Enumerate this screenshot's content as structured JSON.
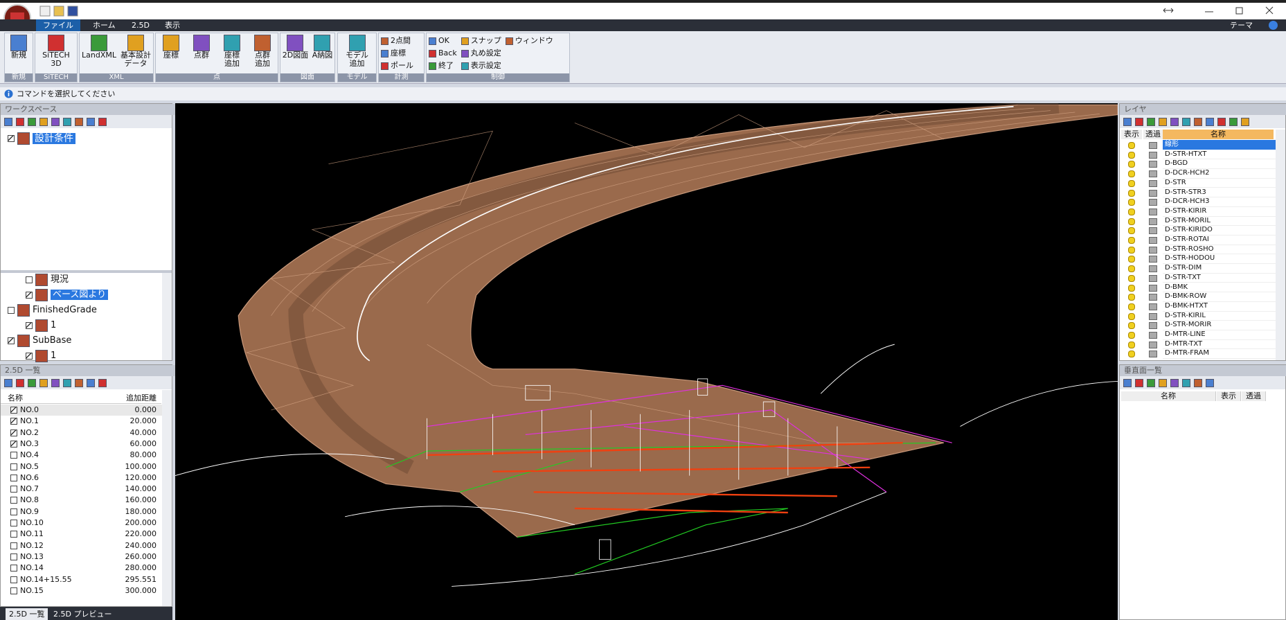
{
  "tabs": [
    "ファイル",
    "ホーム",
    "2.5D",
    "表示"
  ],
  "theme_menu": "テーマ",
  "ribbon": [
    {
      "label": "新規",
      "buttons": [
        "新規"
      ]
    },
    {
      "label": "SiTECH",
      "buttons": [
        "SiTECH\n3D"
      ]
    },
    {
      "label": "XML",
      "buttons": [
        "LandXML",
        "基本設計\nデータ"
      ]
    },
    {
      "label": "点",
      "buttons": [
        "座標",
        "点群",
        "座標\n追加",
        "点群\n追加"
      ]
    },
    {
      "label": "図面",
      "buttons": [
        "2D図面",
        "A納図"
      ]
    },
    {
      "label": "モデル",
      "buttons": [
        "モデル\n追加"
      ]
    },
    {
      "label": "計測",
      "buttons": [
        "2点間",
        "座標",
        "ポール"
      ]
    },
    {
      "label": "制御",
      "buttons": [
        "OK",
        "Back",
        "終了",
        "スナップ",
        "丸め設定",
        "表示設定",
        "ウィンドウ"
      ]
    }
  ],
  "status": "コマンドを選択してください",
  "workspace": {
    "title": "ワークスペース",
    "items": [
      {
        "label": "設計条件",
        "checked": true
      },
      {
        "label": "現況",
        "checked": false
      },
      {
        "label": "ベース図より",
        "checked": true
      },
      {
        "label": "FinishedGrade",
        "checked": false
      },
      {
        "label": "1",
        "checked": true
      },
      {
        "label": "SubBase",
        "checked": true
      },
      {
        "label": "1",
        "checked": true
      }
    ]
  },
  "list_25d": {
    "title": "2.5D 一覧",
    "columns": [
      "名称",
      "追加距離"
    ],
    "rows": [
      {
        "name": "NO.0",
        "distance": "0.000",
        "checked": true
      },
      {
        "name": "NO.1",
        "distance": "20.000",
        "checked": true
      },
      {
        "name": "NO.2",
        "distance": "40.000",
        "checked": true
      },
      {
        "name": "NO.3",
        "distance": "60.000",
        "checked": true
      },
      {
        "name": "NO.4",
        "distance": "80.000",
        "checked": false
      },
      {
        "name": "NO.5",
        "distance": "100.000",
        "checked": false
      },
      {
        "name": "NO.6",
        "distance": "120.000",
        "checked": false
      },
      {
        "name": "NO.7",
        "distance": "140.000",
        "checked": false
      },
      {
        "name": "NO.8",
        "distance": "160.000",
        "checked": false
      },
      {
        "name": "NO.9",
        "distance": "180.000",
        "checked": false
      },
      {
        "name": "NO.10",
        "distance": "200.000",
        "checked": false
      },
      {
        "name": "NO.11",
        "distance": "220.000",
        "checked": false
      },
      {
        "name": "NO.12",
        "distance": "240.000",
        "checked": false
      },
      {
        "name": "NO.13",
        "distance": "260.000",
        "checked": false
      },
      {
        "name": "NO.14",
        "distance": "280.000",
        "checked": false
      },
      {
        "name": "NO.14+15.55",
        "distance": "295.551",
        "checked": false
      },
      {
        "name": "NO.15",
        "distance": "300.000",
        "checked": false
      }
    ]
  },
  "bottom_tabs": [
    "2.5D 一覧",
    "2.5D プレビュー"
  ],
  "layers": {
    "title": "レイヤ",
    "columns": [
      "表示",
      "透過",
      "名称"
    ],
    "rows": [
      "線形",
      "D-STR-HTXT",
      "D-BGD",
      "D-DCR-HCH2",
      "D-STR",
      "D-STR-STR3",
      "D-DCR-HCH3",
      "D-STR-KIRIR",
      "D-STR-MORIL",
      "D-STR-KIRIDO",
      "D-STR-ROTAI",
      "D-STR-ROSHO",
      "D-STR-HODOU",
      "D-STR-DIM",
      "D-STR-TXT",
      "D-BMK",
      "D-BMK-ROW",
      "D-BMK-HTXT",
      "D-STR-KIRIL",
      "D-STR-MORIR",
      "D-MTR-LINE",
      "D-MTR-TXT",
      "D-MTR-FRAM"
    ]
  },
  "vertical_planes": {
    "title": "垂直面一覧",
    "columns": [
      "名称",
      "表示",
      "透過"
    ]
  }
}
